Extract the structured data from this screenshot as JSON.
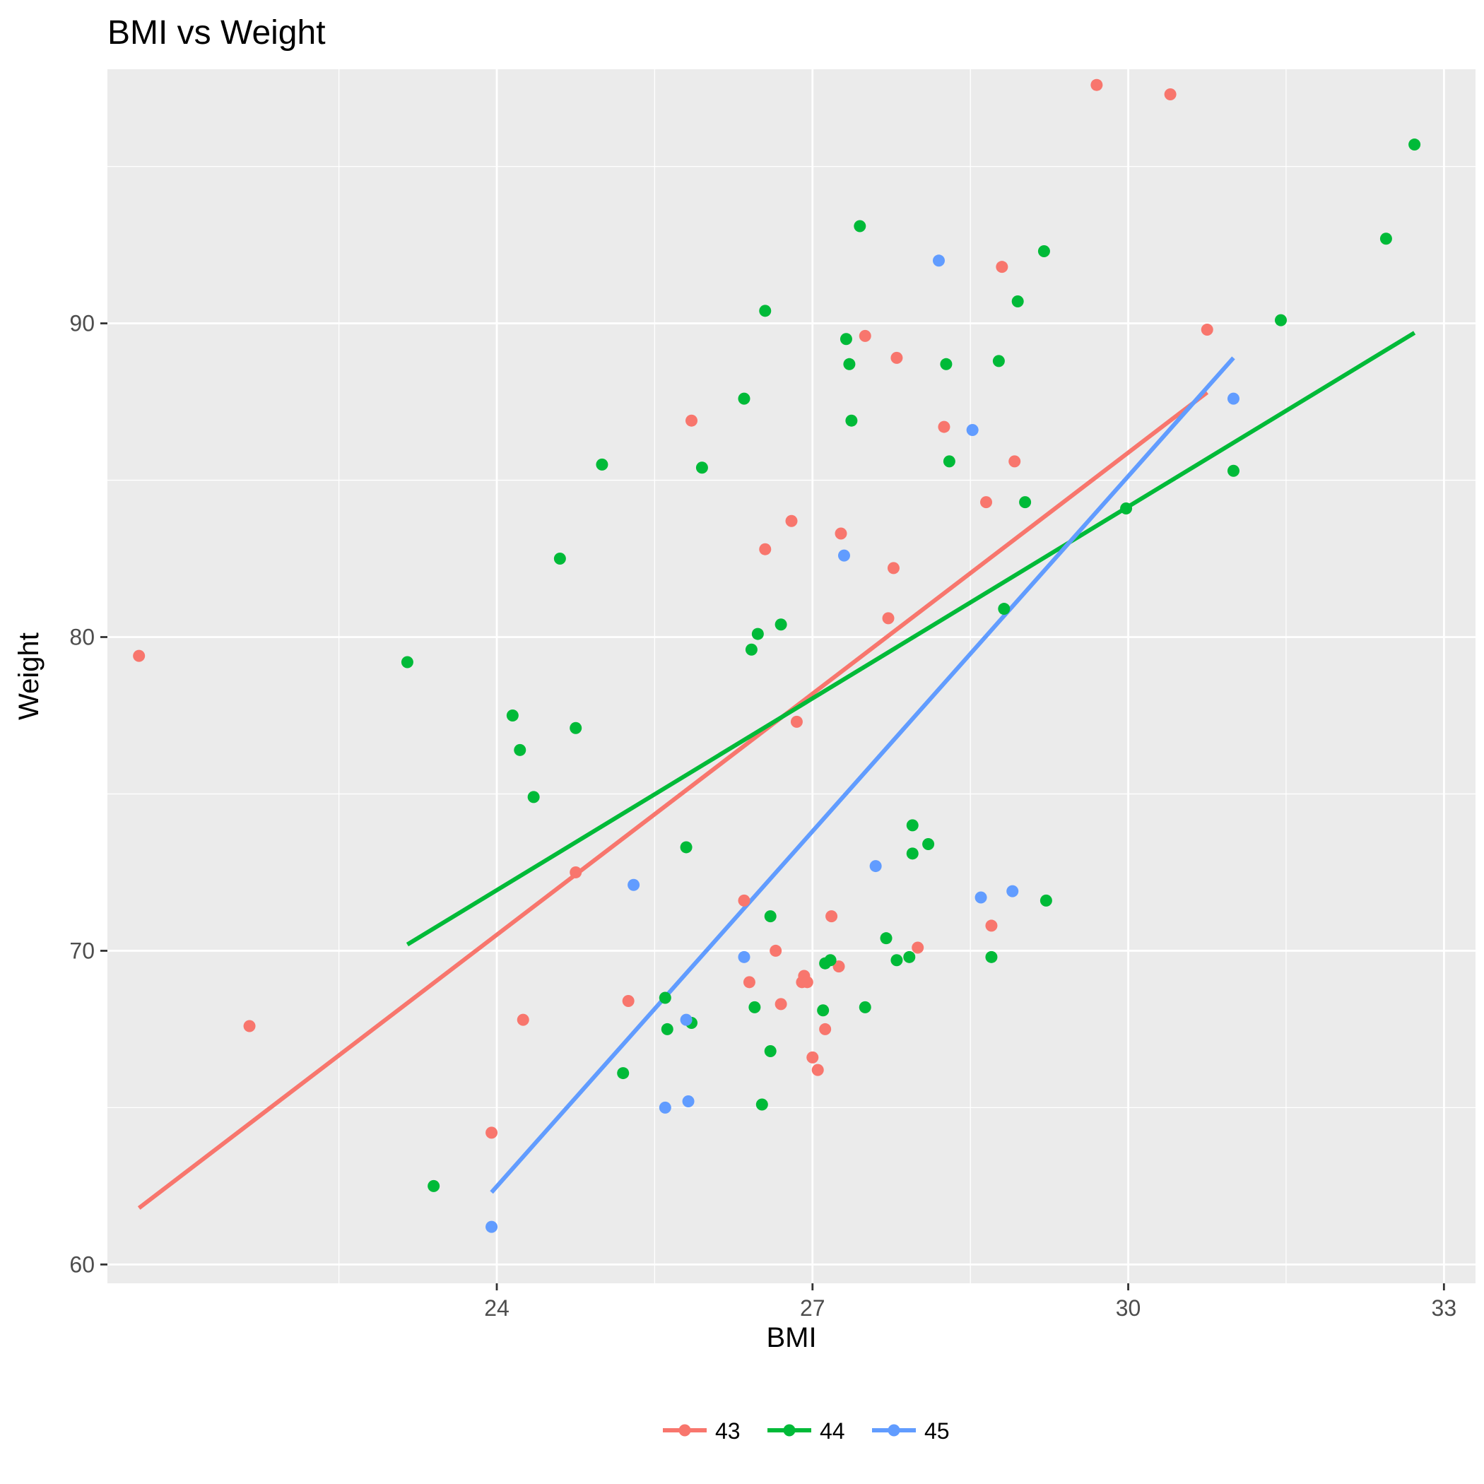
{
  "chart_data": {
    "type": "scatter",
    "title": "BMI vs Weight",
    "xlabel": "BMI",
    "ylabel": "Weight",
    "xlim": [
      20.3,
      33.3
    ],
    "ylim": [
      59.4,
      98.1
    ],
    "xticks": [
      24,
      27,
      30,
      33
    ],
    "yticks": [
      60,
      70,
      80,
      90
    ],
    "grid": true,
    "legend_position": "bottom",
    "trendlines": "linear fit per series",
    "series": [
      {
        "name": "43",
        "color": "#F8766D",
        "points": [
          [
            20.6,
            79.4
          ],
          [
            21.65,
            67.6
          ],
          [
            23.95,
            64.2
          ],
          [
            24.25,
            67.8
          ],
          [
            24.75,
            72.5
          ],
          [
            25.25,
            68.4
          ],
          [
            25.85,
            86.9
          ],
          [
            26.35,
            71.6
          ],
          [
            26.4,
            69.0
          ],
          [
            26.55,
            82.8
          ],
          [
            26.65,
            70.0
          ],
          [
            26.7,
            68.3
          ],
          [
            26.8,
            83.7
          ],
          [
            26.85,
            77.3
          ],
          [
            26.9,
            69.0
          ],
          [
            26.92,
            69.2
          ],
          [
            26.95,
            69.0
          ],
          [
            27.0,
            66.6
          ],
          [
            27.05,
            66.2
          ],
          [
            27.12,
            67.5
          ],
          [
            27.18,
            71.1
          ],
          [
            27.25,
            69.5
          ],
          [
            27.27,
            83.3
          ],
          [
            27.5,
            89.6
          ],
          [
            27.72,
            80.6
          ],
          [
            27.77,
            82.2
          ],
          [
            27.8,
            88.9
          ],
          [
            28.0,
            70.1
          ],
          [
            28.25,
            86.7
          ],
          [
            28.65,
            84.3
          ],
          [
            28.7,
            70.8
          ],
          [
            28.8,
            91.8
          ],
          [
            28.92,
            85.6
          ],
          [
            29.7,
            97.6
          ],
          [
            30.4,
            97.3
          ],
          [
            30.75,
            89.8
          ]
        ],
        "fit": [
          [
            20.6,
            61.8
          ],
          [
            30.75,
            87.8
          ]
        ]
      },
      {
        "name": "44",
        "color": "#00BA38",
        "points": [
          [
            23.15,
            79.2
          ],
          [
            23.4,
            62.5
          ],
          [
            24.15,
            77.5
          ],
          [
            24.22,
            76.4
          ],
          [
            24.35,
            74.9
          ],
          [
            24.6,
            82.5
          ],
          [
            24.75,
            77.1
          ],
          [
            25.0,
            85.5
          ],
          [
            25.2,
            66.1
          ],
          [
            25.6,
            68.5
          ],
          [
            25.62,
            67.5
          ],
          [
            25.8,
            73.3
          ],
          [
            25.85,
            67.7
          ],
          [
            25.95,
            85.4
          ],
          [
            26.35,
            87.6
          ],
          [
            26.42,
            79.6
          ],
          [
            26.45,
            68.2
          ],
          [
            26.48,
            80.1
          ],
          [
            26.52,
            65.1
          ],
          [
            26.55,
            90.4
          ],
          [
            26.6,
            71.1
          ],
          [
            26.6,
            66.8
          ],
          [
            26.7,
            80.4
          ],
          [
            27.1,
            68.1
          ],
          [
            27.12,
            69.6
          ],
          [
            27.17,
            69.7
          ],
          [
            27.32,
            89.5
          ],
          [
            27.35,
            88.7
          ],
          [
            27.37,
            86.9
          ],
          [
            27.45,
            93.1
          ],
          [
            27.5,
            68.2
          ],
          [
            27.7,
            70.4
          ],
          [
            27.8,
            69.7
          ],
          [
            27.92,
            69.8
          ],
          [
            27.95,
            73.1
          ],
          [
            27.95,
            74.0
          ],
          [
            28.1,
            73.4
          ],
          [
            28.27,
            88.7
          ],
          [
            28.3,
            85.6
          ],
          [
            28.7,
            69.8
          ],
          [
            28.77,
            88.8
          ],
          [
            28.82,
            80.9
          ],
          [
            28.95,
            90.7
          ],
          [
            29.02,
            84.3
          ],
          [
            29.2,
            92.3
          ],
          [
            29.22,
            71.6
          ],
          [
            29.98,
            84.1
          ],
          [
            31.0,
            85.3
          ],
          [
            31.45,
            90.1
          ],
          [
            32.45,
            92.7
          ],
          [
            32.72,
            95.7
          ]
        ],
        "fit": [
          [
            23.15,
            70.2
          ],
          [
            32.72,
            89.7
          ]
        ]
      },
      {
        "name": "45",
        "color": "#619CFF",
        "points": [
          [
            23.95,
            61.2
          ],
          [
            25.3,
            72.1
          ],
          [
            25.6,
            65.0
          ],
          [
            25.8,
            67.8
          ],
          [
            25.82,
            65.2
          ],
          [
            26.35,
            69.8
          ],
          [
            27.3,
            82.6
          ],
          [
            27.6,
            72.7
          ],
          [
            28.2,
            92.0
          ],
          [
            28.52,
            86.6
          ],
          [
            28.6,
            71.7
          ],
          [
            28.9,
            71.9
          ],
          [
            31.0,
            87.6
          ]
        ],
        "fit": [
          [
            23.95,
            62.3
          ],
          [
            31.0,
            88.9
          ]
        ]
      }
    ]
  }
}
